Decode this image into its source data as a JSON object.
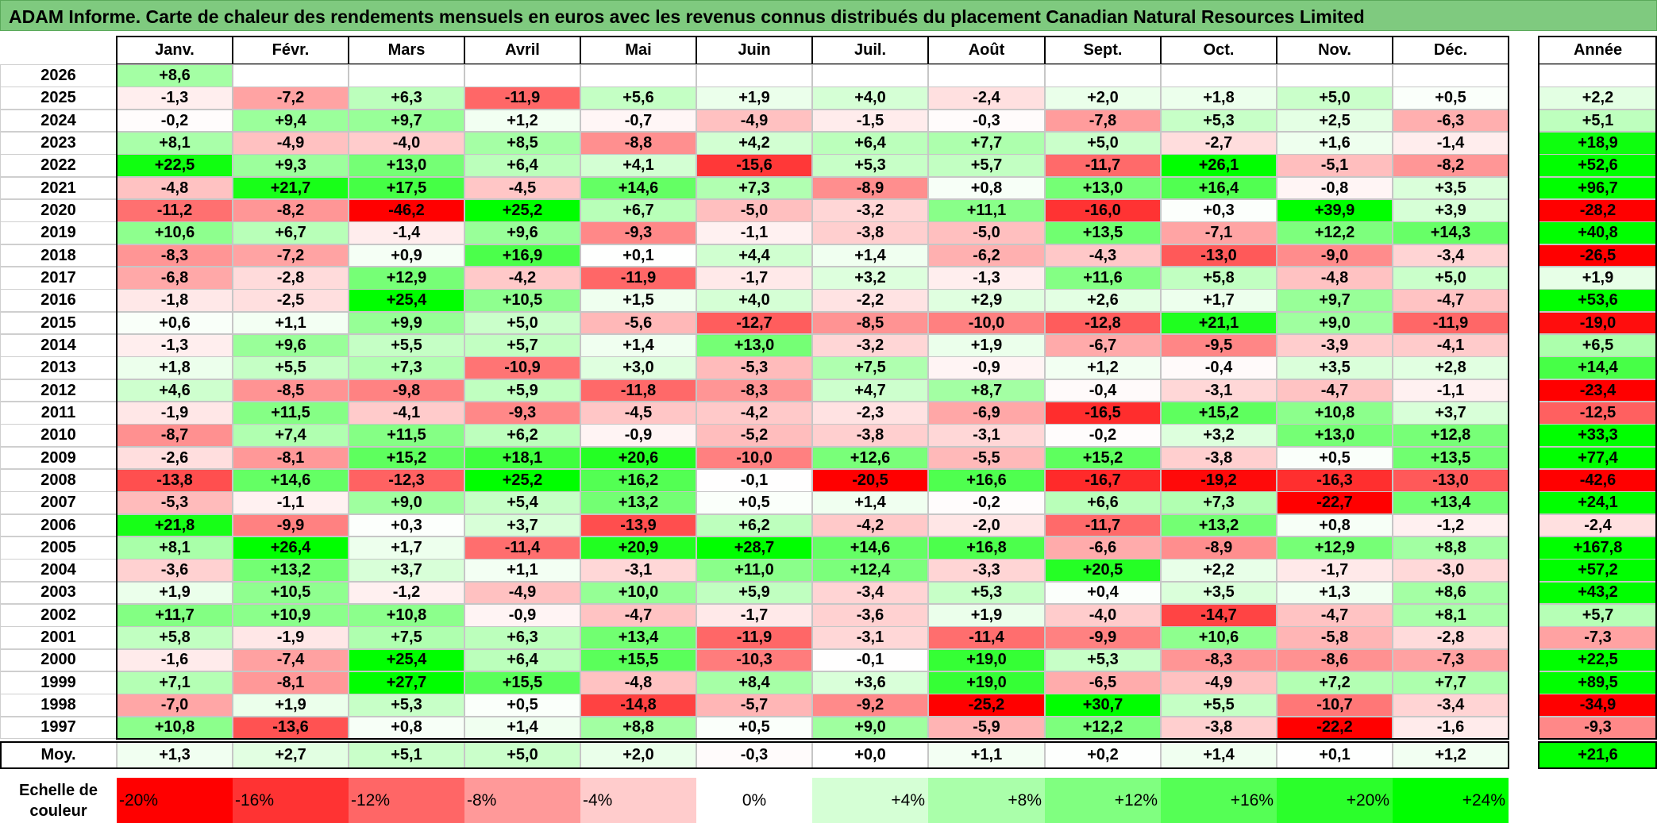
{
  "title": "ADAM Informe. Carte de chaleur des rendements mensuels en euros avec les revenus connus distribués du placement Canadian Natural Resources Limited",
  "chart_data": {
    "type": "heatmap",
    "title": "ADAM Informe. Carte de chaleur des rendements mensuels en euros avec les revenus connus distribués du placement Canadian Natural Resources Limited",
    "columns": [
      "Janv.",
      "Févr.",
      "Mars",
      "Avril",
      "Mai",
      "Juin",
      "Juil.",
      "Août",
      "Sept.",
      "Oct.",
      "Nov.",
      "Déc."
    ],
    "year_column_label": "Année",
    "average_row_label": "Moy.",
    "rows": [
      {
        "year": "2026",
        "values": [
          "+8,6",
          "",
          "",
          "",
          "",
          "",
          "",
          "",
          "",
          "",
          "",
          ""
        ],
        "annual": ""
      },
      {
        "year": "2025",
        "values": [
          "-1,3",
          "-7,2",
          "+6,3",
          "-11,9",
          "+5,6",
          "+1,9",
          "+4,0",
          "-2,4",
          "+2,0",
          "+1,8",
          "+5,0",
          "+0,5"
        ],
        "annual": "+2,2"
      },
      {
        "year": "2024",
        "values": [
          "-0,2",
          "+9,4",
          "+9,7",
          "+1,2",
          "-0,7",
          "-4,9",
          "-1,5",
          "-0,3",
          "-7,8",
          "+5,3",
          "+2,5",
          "-6,3"
        ],
        "annual": "+5,1"
      },
      {
        "year": "2023",
        "values": [
          "+8,1",
          "-4,9",
          "-4,0",
          "+8,5",
          "-8,8",
          "+4,2",
          "+6,4",
          "+7,7",
          "+5,0",
          "-2,7",
          "+1,6",
          "-1,4"
        ],
        "annual": "+18,9"
      },
      {
        "year": "2022",
        "values": [
          "+22,5",
          "+9,3",
          "+13,0",
          "+6,4",
          "+4,1",
          "-15,6",
          "+5,3",
          "+5,7",
          "-11,7",
          "+26,1",
          "-5,1",
          "-8,2"
        ],
        "annual": "+52,6"
      },
      {
        "year": "2021",
        "values": [
          "-4,8",
          "+21,7",
          "+17,5",
          "-4,5",
          "+14,6",
          "+7,3",
          "-8,9",
          "+0,8",
          "+13,0",
          "+16,4",
          "-0,8",
          "+3,5"
        ],
        "annual": "+96,7"
      },
      {
        "year": "2020",
        "values": [
          "-11,2",
          "-8,2",
          "-46,2",
          "+25,2",
          "+6,7",
          "-5,0",
          "-3,2",
          "+11,1",
          "-16,0",
          "+0,3",
          "+39,9",
          "+3,9"
        ],
        "annual": "-28,2"
      },
      {
        "year": "2019",
        "values": [
          "+10,6",
          "+6,7",
          "-1,4",
          "+9,6",
          "-9,3",
          "-1,1",
          "-3,8",
          "-5,0",
          "+13,5",
          "-7,1",
          "+12,2",
          "+14,3"
        ],
        "annual": "+40,8"
      },
      {
        "year": "2018",
        "values": [
          "-8,3",
          "-7,2",
          "+0,9",
          "+16,9",
          "+0,1",
          "+4,4",
          "+1,4",
          "-6,2",
          "-4,3",
          "-13,0",
          "-9,0",
          "-3,4"
        ],
        "annual": "-26,5"
      },
      {
        "year": "2017",
        "values": [
          "-6,8",
          "-2,8",
          "+12,9",
          "-4,2",
          "-11,9",
          "-1,7",
          "+3,2",
          "-1,3",
          "+11,6",
          "+5,8",
          "-4,8",
          "+5,0"
        ],
        "annual": "+1,9"
      },
      {
        "year": "2016",
        "values": [
          "-1,8",
          "-2,5",
          "+25,4",
          "+10,5",
          "+1,5",
          "+4,0",
          "-2,2",
          "+2,9",
          "+2,6",
          "+1,7",
          "+9,7",
          "-4,7"
        ],
        "annual": "+53,6"
      },
      {
        "year": "2015",
        "values": [
          "+0,6",
          "+1,1",
          "+9,9",
          "+5,0",
          "-5,6",
          "-12,7",
          "-8,5",
          "-10,0",
          "-12,8",
          "+21,1",
          "+9,0",
          "-11,9"
        ],
        "annual": "-19,0"
      },
      {
        "year": "2014",
        "values": [
          "-1,3",
          "+9,6",
          "+5,5",
          "+5,7",
          "+1,4",
          "+13,0",
          "-3,2",
          "+1,9",
          "-6,7",
          "-9,5",
          "-3,9",
          "-4,1"
        ],
        "annual": "+6,5"
      },
      {
        "year": "2013",
        "values": [
          "+1,8",
          "+5,5",
          "+7,3",
          "-10,9",
          "+3,0",
          "-5,3",
          "+7,5",
          "-0,9",
          "+1,2",
          "-0,4",
          "+3,5",
          "+2,8"
        ],
        "annual": "+14,4"
      },
      {
        "year": "2012",
        "values": [
          "+4,6",
          "-8,5",
          "-9,8",
          "+5,9",
          "-11,8",
          "-8,3",
          "+4,7",
          "+8,7",
          "-0,4",
          "-3,1",
          "-4,7",
          "-1,1"
        ],
        "annual": "-23,4"
      },
      {
        "year": "2011",
        "values": [
          "-1,9",
          "+11,5",
          "-4,1",
          "-9,3",
          "-4,5",
          "-4,2",
          "-2,3",
          "-6,9",
          "-16,5",
          "+15,2",
          "+10,8",
          "+3,7"
        ],
        "annual": "-12,5"
      },
      {
        "year": "2010",
        "values": [
          "-8,7",
          "+7,4",
          "+11,5",
          "+6,2",
          "-0,9",
          "-5,2",
          "-3,8",
          "-3,1",
          "-0,2",
          "+3,2",
          "+13,0",
          "+12,8"
        ],
        "annual": "+33,3"
      },
      {
        "year": "2009",
        "values": [
          "-2,6",
          "-8,1",
          "+15,2",
          "+18,1",
          "+20,6",
          "-10,0",
          "+12,6",
          "-5,5",
          "+15,2",
          "-3,8",
          "+0,5",
          "+13,5"
        ],
        "annual": "+77,4"
      },
      {
        "year": "2008",
        "values": [
          "-13,8",
          "+14,6",
          "-12,3",
          "+25,2",
          "+16,2",
          "-0,1",
          "-20,5",
          "+16,6",
          "-16,7",
          "-19,2",
          "-16,3",
          "-13,0"
        ],
        "annual": "-42,6"
      },
      {
        "year": "2007",
        "values": [
          "-5,3",
          "-1,1",
          "+9,0",
          "+5,4",
          "+13,2",
          "+0,5",
          "+1,4",
          "-0,2",
          "+6,6",
          "+7,3",
          "-22,7",
          "+13,4"
        ],
        "annual": "+24,1"
      },
      {
        "year": "2006",
        "values": [
          "+21,8",
          "-9,9",
          "+0,3",
          "+3,7",
          "-13,9",
          "+6,2",
          "-4,2",
          "-2,0",
          "-11,7",
          "+13,2",
          "+0,8",
          "-1,2"
        ],
        "annual": "-2,4"
      },
      {
        "year": "2005",
        "values": [
          "+8,1",
          "+26,4",
          "+1,7",
          "-11,4",
          "+20,9",
          "+28,7",
          "+14,6",
          "+16,8",
          "-6,6",
          "-8,9",
          "+12,9",
          "+8,8"
        ],
        "annual": "+167,8"
      },
      {
        "year": "2004",
        "values": [
          "-3,6",
          "+13,2",
          "+3,7",
          "+1,1",
          "-3,1",
          "+11,0",
          "+12,4",
          "-3,3",
          "+20,5",
          "+2,2",
          "-1,7",
          "-3,0"
        ],
        "annual": "+57,2"
      },
      {
        "year": "2003",
        "values": [
          "+1,9",
          "+10,5",
          "-1,2",
          "-4,9",
          "+10,0",
          "+5,9",
          "-3,4",
          "+5,3",
          "+0,4",
          "+3,5",
          "+1,3",
          "+8,6"
        ],
        "annual": "+43,2"
      },
      {
        "year": "2002",
        "values": [
          "+11,7",
          "+10,9",
          "+10,8",
          "-0,9",
          "-4,7",
          "-1,7",
          "-3,6",
          "+1,9",
          "-4,0",
          "-14,7",
          "-4,7",
          "+8,1"
        ],
        "annual": "+5,7"
      },
      {
        "year": "2001",
        "values": [
          "+5,8",
          "-1,9",
          "+7,5",
          "+6,3",
          "+13,4",
          "-11,9",
          "-3,1",
          "-11,4",
          "-9,9",
          "+10,6",
          "-5,8",
          "-2,8"
        ],
        "annual": "-7,3"
      },
      {
        "year": "2000",
        "values": [
          "-1,6",
          "-7,4",
          "+25,4",
          "+6,4",
          "+15,5",
          "-10,3",
          "-0,1",
          "+19,0",
          "+5,3",
          "-8,3",
          "-8,6",
          "-7,3"
        ],
        "annual": "+22,5"
      },
      {
        "year": "1999",
        "values": [
          "+7,1",
          "-8,1",
          "+27,7",
          "+15,5",
          "-4,8",
          "+8,4",
          "+3,6",
          "+19,0",
          "-6,5",
          "-4,9",
          "+7,2",
          "+7,7"
        ],
        "annual": "+89,5"
      },
      {
        "year": "1998",
        "values": [
          "-7,0",
          "+1,9",
          "+5,3",
          "+0,5",
          "-14,8",
          "-5,7",
          "-9,2",
          "-25,2",
          "+30,7",
          "+5,5",
          "-10,7",
          "-3,4"
        ],
        "annual": "-34,9"
      },
      {
        "year": "1997",
        "values": [
          "+10,8",
          "-13,6",
          "+0,8",
          "+1,4",
          "+8,8",
          "+0,5",
          "+9,0",
          "-5,9",
          "+12,2",
          "-3,8",
          "-22,2",
          "-1,6"
        ],
        "annual": "-9,3"
      }
    ],
    "averages": [
      "+1,3",
      "+2,7",
      "+5,1",
      "+5,0",
      "+2,0",
      "-0,3",
      "+0,0",
      "+1,1",
      "+0,2",
      "+1,4",
      "+0,1",
      "+1,2"
    ],
    "average_annual": "+21,6",
    "color_scale": {
      "label": "Echelle de\ncouleur",
      "stops": [
        {
          "label": "-20%",
          "value": -20,
          "color": "#ff0000"
        },
        {
          "label": "-16%",
          "value": -16,
          "color": "#ff3333"
        },
        {
          "label": "-12%",
          "value": -12,
          "color": "#ff6666"
        },
        {
          "label": "-8%",
          "value": -8,
          "color": "#ff9999"
        },
        {
          "label": "-4%",
          "value": -4,
          "color": "#ffcccc"
        },
        {
          "label": "0%",
          "value": 0,
          "color": "#ffffff"
        },
        {
          "label": "+4%",
          "value": 4,
          "color": "#d5ffd5"
        },
        {
          "label": "+8%",
          "value": 8,
          "color": "#aaffaa"
        },
        {
          "label": "+12%",
          "value": 12,
          "color": "#80ff80"
        },
        {
          "label": "+16%",
          "value": 16,
          "color": "#55ff55"
        },
        {
          "label": "+20%",
          "value": 20,
          "color": "#2bff2b"
        },
        {
          "label": "+24%",
          "value": 24,
          "color": "#00ff00"
        }
      ]
    }
  }
}
